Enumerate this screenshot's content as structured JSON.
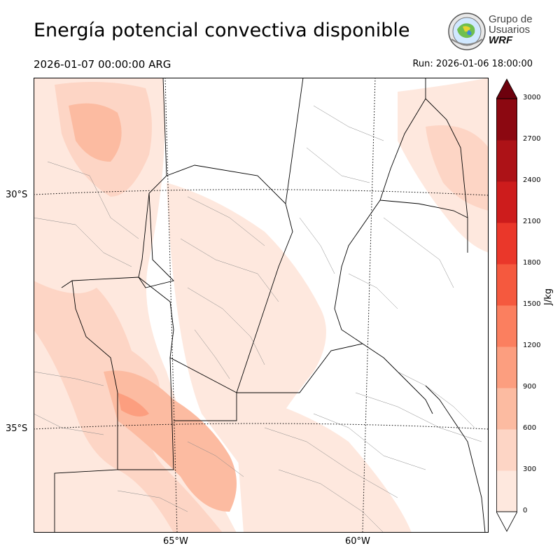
{
  "header": {
    "title": "Energía potencial convectiva disponible",
    "valid_time": "2026-01-07 00:00:00 ARG",
    "run_time": "Run: 2026-01-06 18:00:00"
  },
  "logo": {
    "line1": "Grupo de",
    "line2": "Usuarios",
    "line3": "WRF"
  },
  "map": {
    "lat_labels": [
      "30°S",
      "35°S"
    ],
    "lon_labels": [
      "65°W",
      "60°W"
    ],
    "palette": {
      "background": "#ffffff",
      "borders": "#000000"
    }
  },
  "colorbar": {
    "unit": "J/kg",
    "ticks": [
      "0",
      "300",
      "600",
      "900",
      "1200",
      "1500",
      "1800",
      "2100",
      "2400",
      "2700",
      "3000"
    ],
    "colors": [
      "#fee8de",
      "#fdd5c5",
      "#fcbba1",
      "#fc9e7f",
      "#fb7f5f",
      "#f5593e",
      "#ea372a",
      "#cd1c1c",
      "#ad1217",
      "#8c0811",
      "#6d010d"
    ]
  }
}
